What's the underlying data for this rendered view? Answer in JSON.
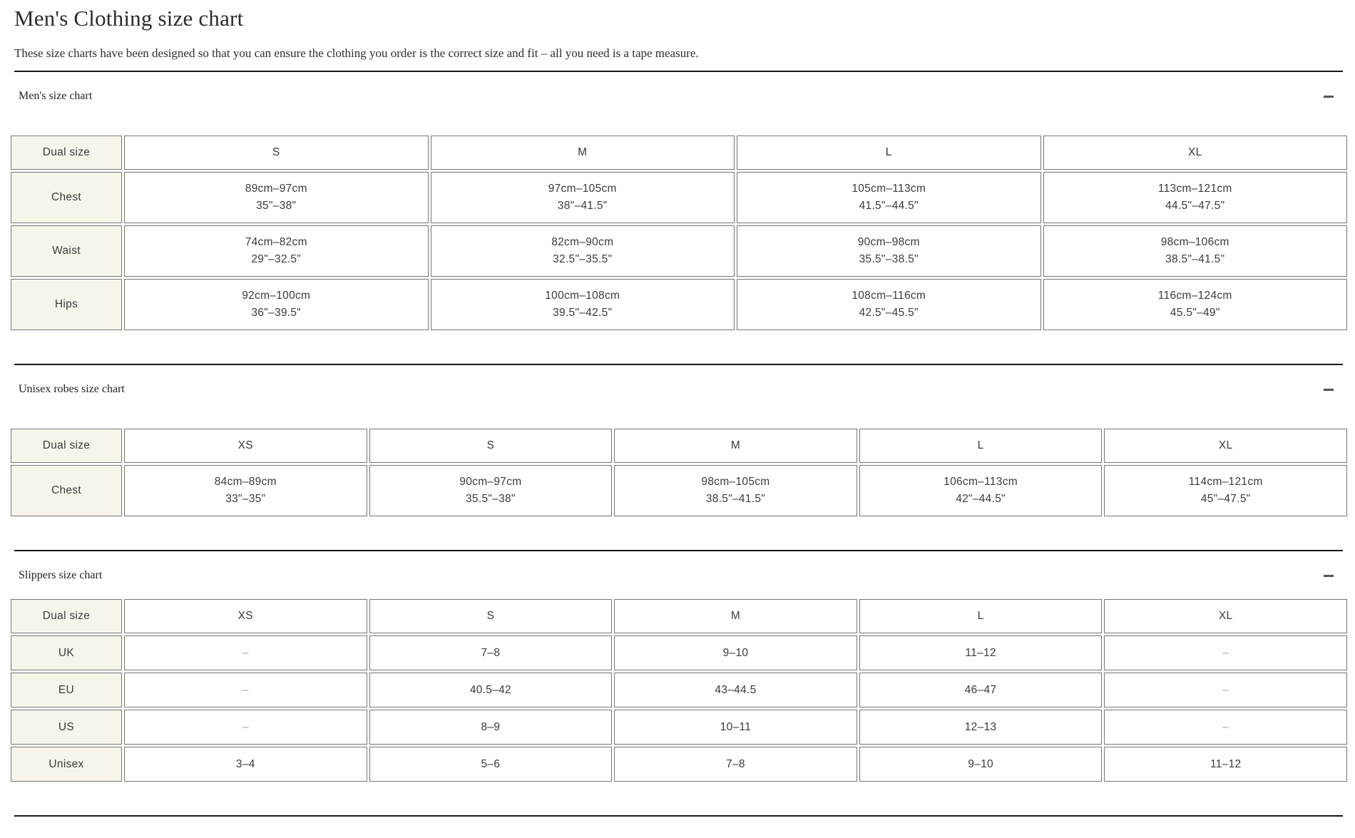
{
  "page": {
    "title": "Men's Clothing size chart",
    "subtitle": "These size charts have been designed so that you can ensure the clothing you order is the correct size and fit – all you need is a tape measure."
  },
  "colors": {
    "label_cell_bg": "#f7f5ea",
    "cell_border": "#777777",
    "rule": "#161616",
    "minus_icon": "#4e565e"
  },
  "sections": [
    {
      "title": "Men's size chart",
      "collapse_icon": "minus-icon",
      "table": {
        "corner_label": "Dual size",
        "size_columns": [
          "S",
          "M",
          "L",
          "XL"
        ],
        "rows": [
          {
            "label": "Chest",
            "cells": [
              [
                "89cm–97cm",
                "35\"–38\""
              ],
              [
                "97cm–105cm",
                "38\"–41.5\""
              ],
              [
                "105cm–113cm",
                "41.5\"–44.5\""
              ],
              [
                "113cm–121cm",
                "44.5\"–47.5\""
              ]
            ]
          },
          {
            "label": "Waist",
            "cells": [
              [
                "74cm–82cm",
                "29\"–32.5\""
              ],
              [
                "82cm–90cm",
                "32.5\"–35.5\""
              ],
              [
                "90cm–98cm",
                "35.5\"–38.5\""
              ],
              [
                "98cm–106cm",
                "38.5\"–41.5\""
              ]
            ]
          },
          {
            "label": "Hips",
            "cells": [
              [
                "92cm–100cm",
                "36\"–39.5\""
              ],
              [
                "100cm–108cm",
                "39.5\"–42.5\""
              ],
              [
                "108cm–116cm",
                "42.5\"–45.5\""
              ],
              [
                "116cm–124cm",
                "45.5\"–49\""
              ]
            ]
          }
        ]
      }
    },
    {
      "title": "Unisex robes size chart",
      "collapse_icon": "minus-icon",
      "table": {
        "corner_label": "Dual size",
        "size_columns": [
          "XS",
          "S",
          "M",
          "L",
          "XL"
        ],
        "rows": [
          {
            "label": "Chest",
            "cells": [
              [
                "84cm–89cm",
                "33\"–35\""
              ],
              [
                "90cm–97cm",
                "35.5\"–38\""
              ],
              [
                "98cm–105cm",
                "38.5\"–41.5\""
              ],
              [
                "106cm–113cm",
                "42\"–44.5\""
              ],
              [
                "114cm–121cm",
                "45\"–47.5\""
              ]
            ]
          }
        ]
      }
    },
    {
      "title": "Slippers size chart",
      "collapse_icon": "minus-icon",
      "table": {
        "corner_label": "Dual size",
        "size_columns": [
          "XS",
          "S",
          "M",
          "L",
          "XL"
        ],
        "rows": [
          {
            "label": "UK",
            "cells": [
              [
                "–"
              ],
              [
                "7–8"
              ],
              [
                "9–10"
              ],
              [
                "11–12"
              ],
              [
                "–"
              ]
            ]
          },
          {
            "label": "EU",
            "cells": [
              [
                "–"
              ],
              [
                "40.5–42"
              ],
              [
                "43–44.5"
              ],
              [
                "46–47"
              ],
              [
                "–"
              ]
            ]
          },
          {
            "label": "US",
            "cells": [
              [
                "–"
              ],
              [
                "8–9"
              ],
              [
                "10–11"
              ],
              [
                "12–13"
              ],
              [
                "–"
              ]
            ]
          },
          {
            "label": "Unisex",
            "cells": [
              [
                "3–4"
              ],
              [
                "5–6"
              ],
              [
                "7–8"
              ],
              [
                "9–10"
              ],
              [
                "11–12"
              ]
            ]
          }
        ]
      }
    }
  ]
}
